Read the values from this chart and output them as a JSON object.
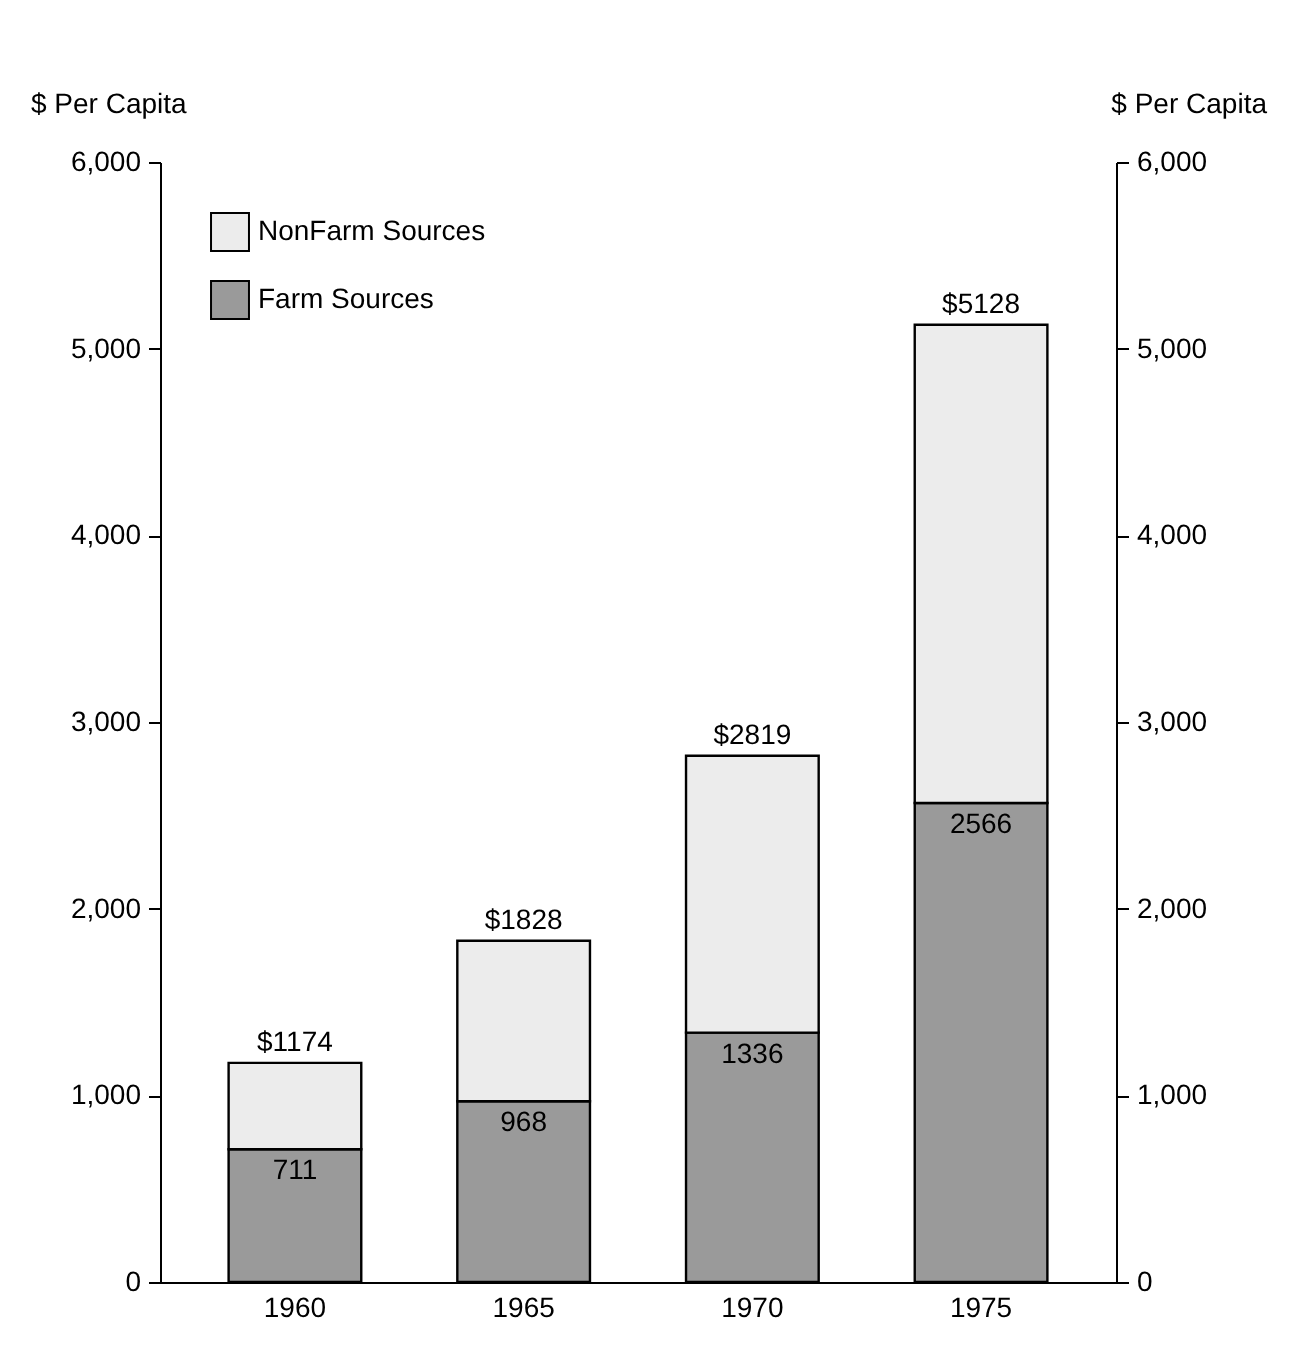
{
  "chart_data": {
    "type": "bar",
    "stacked": true,
    "categories": [
      "1960",
      "1965",
      "1970",
      "1975"
    ],
    "series": [
      {
        "name": "Farm Sources",
        "color": "#9a9a9a",
        "values": [
          711,
          968,
          1336,
          2566
        ],
        "value_labels": [
          "711",
          "968",
          "1336",
          "2566"
        ]
      },
      {
        "name": "NonFarm Sources",
        "color": "#ececec",
        "values": [
          463,
          860,
          1483,
          2562
        ]
      }
    ],
    "totals": [
      "$1174",
      "$1828",
      "$2819",
      "$5128"
    ],
    "ylabel": "$ Per Capita",
    "y2label": "$ Per Capita",
    "ylim": [
      0,
      6000
    ],
    "yticks": [
      0,
      {
        "value": 1000,
        "label": "1,000"
      },
      {
        "value": 2000,
        "label": "2,000"
      },
      {
        "value": 3000,
        "label": "3,000"
      },
      {
        "value": 4000,
        "label": "4,000"
      },
      {
        "value": 5000,
        "label": "5,000"
      },
      {
        "value": 6000,
        "label": "6,000"
      }
    ],
    "y2lim": [
      0,
      6000
    ],
    "y2ticks": [
      0,
      {
        "value": 1000,
        "label": "1,000"
      },
      {
        "value": 2000,
        "label": "2,000"
      },
      {
        "value": 3000,
        "label": "3,000"
      },
      {
        "value": 4000,
        "label": "4,000"
      },
      {
        "value": 5000,
        "label": "5,000"
      },
      {
        "value": 6000,
        "label": "6,000"
      }
    ],
    "legend": "top left",
    "grid": false
  }
}
